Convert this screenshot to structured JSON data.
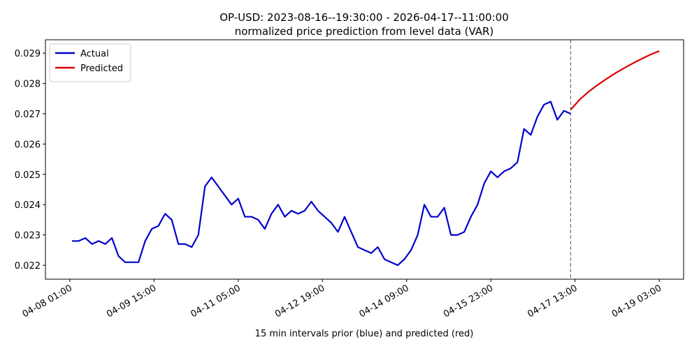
{
  "chart_data": {
    "type": "line",
    "title": "OP-USD: 2023-08-16--19:30:00 - 2026-04-17--11:00:00",
    "subtitle": "normalized price prediction from level data (VAR)",
    "xlabel": "15 min intervals prior (blue) and predicted (red)",
    "xlim": [
      "04-07 14:00",
      "04-19 14:00"
    ],
    "xticks": [
      "04-08 01:00",
      "04-09 15:00",
      "04-11 05:00",
      "04-12 19:00",
      "04-14 09:00",
      "04-15 23:00",
      "04-17 13:00",
      "04-19 03:00"
    ],
    "ylim": [
      0.02154,
      0.02944
    ],
    "yticks": [
      0.022,
      0.023,
      0.024,
      0.025,
      0.026,
      0.027,
      0.028,
      0.029
    ],
    "legend": "upper left",
    "vline_x": "04-17 11:00",
    "series": [
      {
        "name": "Actual",
        "color": "#0000cc",
        "x": [
          "04-08 02:00",
          "04-08 05:00",
          "04-08 08:00",
          "04-08 11:00",
          "04-08 14:00",
          "04-08 17:00",
          "04-08 20:00",
          "04-08 23:00",
          "04-09 02:00",
          "04-09 05:00",
          "04-09 08:00",
          "04-09 11:00",
          "04-09 14:00",
          "04-09 17:00",
          "04-09 20:00",
          "04-09 23:00",
          "04-10 02:00",
          "04-10 05:00",
          "04-10 08:00",
          "04-10 11:00",
          "04-10 14:00",
          "04-10 17:00",
          "04-10 20:00",
          "04-10 23:00",
          "04-11 02:00",
          "04-11 05:00",
          "04-11 08:00",
          "04-11 11:00",
          "04-11 14:00",
          "04-11 17:00",
          "04-11 20:00",
          "04-11 23:00",
          "04-12 02:00",
          "04-12 05:00",
          "04-12 08:00",
          "04-12 11:00",
          "04-12 14:00",
          "04-12 17:00",
          "04-12 20:00",
          "04-12 23:00",
          "04-13 02:00",
          "04-13 05:00",
          "04-13 08:00",
          "04-13 11:00",
          "04-13 14:00",
          "04-13 17:00",
          "04-13 20:00",
          "04-13 23:00",
          "04-14 02:00",
          "04-14 05:00",
          "04-14 08:00",
          "04-14 11:00",
          "04-14 14:00",
          "04-14 17:00",
          "04-14 20:00",
          "04-14 23:00",
          "04-15 02:00",
          "04-15 05:00",
          "04-15 08:00",
          "04-15 11:00",
          "04-15 14:00",
          "04-15 17:00",
          "04-15 20:00",
          "04-15 23:00",
          "04-16 02:00",
          "04-16 05:00",
          "04-16 08:00",
          "04-16 11:00",
          "04-16 14:00",
          "04-16 17:00",
          "04-16 20:00",
          "04-16 23:00",
          "04-17 02:00",
          "04-17 05:00",
          "04-17 08:00",
          "04-17 11:00"
        ],
        "values": [
          0.0228,
          0.0228,
          0.0229,
          0.0227,
          0.0228,
          0.0227,
          0.0229,
          0.0223,
          0.0221,
          0.0221,
          0.0221,
          0.0228,
          0.0232,
          0.0233,
          0.0237,
          0.0235,
          0.0227,
          0.0227,
          0.0226,
          0.023,
          0.0246,
          0.0249,
          0.0246,
          0.0243,
          0.024,
          0.0242,
          0.0236,
          0.0236,
          0.0235,
          0.0232,
          0.0237,
          0.024,
          0.0236,
          0.0238,
          0.0237,
          0.0238,
          0.0241,
          0.0238,
          0.0236,
          0.0234,
          0.0231,
          0.0236,
          0.0231,
          0.0226,
          0.0225,
          0.0224,
          0.0226,
          0.0222,
          0.0221,
          0.022,
          0.0222,
          0.0225,
          0.023,
          0.024,
          0.0236,
          0.0236,
          0.0239,
          0.023,
          0.023,
          0.0231,
          0.0236,
          0.024,
          0.0247,
          0.0251,
          0.0249,
          0.0251,
          0.0252,
          0.0254,
          0.0265,
          0.0263,
          0.0269,
          0.0273,
          0.0274,
          0.0268,
          0.0271,
          0.027
        ]
      },
      {
        "name": "Predicted",
        "color": "#dd0000",
        "x": [
          "04-17 11:00",
          "04-17 15:00",
          "04-17 19:00",
          "04-17 23:00",
          "04-18 03:00",
          "04-18 07:00",
          "04-18 11:00",
          "04-18 15:00",
          "04-18 19:00",
          "04-18 23:00",
          "04-19 03:00"
        ],
        "values": [
          0.02713,
          0.02746,
          0.02772,
          0.02794,
          0.02814,
          0.02833,
          0.0285,
          0.02866,
          0.02881,
          0.02895,
          0.02907
        ]
      }
    ]
  }
}
